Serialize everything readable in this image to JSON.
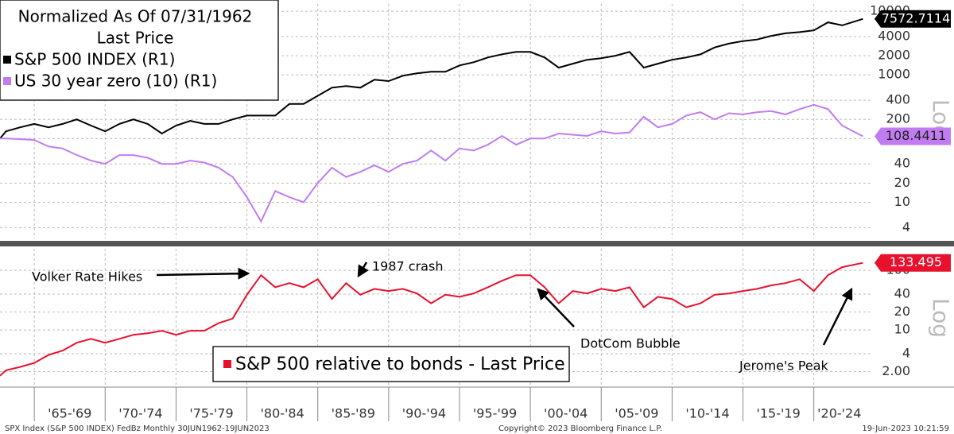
{
  "chart_data": [
    {
      "type": "line",
      "title": "Normalized As Of 07/31/1962",
      "subtitle": "Last Price",
      "y_label": "Log",
      "yscale": "log",
      "xlim": [
        1962.58,
        2024.0
      ],
      "ylim": [
        2.7,
        13000
      ],
      "yticks": [
        4,
        10,
        20,
        40,
        100,
        200,
        400,
        1000,
        2000,
        4000,
        10000
      ],
      "xgrid": [
        1965,
        1970,
        1975,
        1980,
        1985,
        1990,
        1995,
        2000,
        2005,
        2010,
        2015,
        2020
      ],
      "grid": true,
      "legend": "upper left",
      "x": [
        1962.58,
        1963,
        1964,
        1965,
        1966,
        1967,
        1968,
        1969,
        1970,
        1971,
        1972,
        1973,
        1974,
        1975,
        1976,
        1977,
        1978,
        1979,
        1980,
        1981,
        1982,
        1983,
        1984,
        1985,
        1986,
        1987,
        1988,
        1989,
        1990,
        1991,
        1992,
        1993,
        1994,
        1995,
        1996,
        1997,
        1998,
        1999,
        2000,
        2001,
        2002,
        2003,
        2004,
        2005,
        2006,
        2007,
        2008,
        2009,
        2010,
        2011,
        2012,
        2013,
        2014,
        2015,
        2016,
        2017,
        2018,
        2019,
        2020,
        2021,
        2022,
        2023.46
      ],
      "series": [
        {
          "name": "S&P 500 INDEX  (R1)",
          "color": "#000000",
          "values": [
            100,
            130,
            150,
            170,
            150,
            170,
            200,
            160,
            130,
            170,
            200,
            170,
            120,
            160,
            190,
            170,
            170,
            200,
            230,
            230,
            230,
            350,
            350,
            470,
            630,
            670,
            630,
            840,
            800,
            970,
            1060,
            1120,
            1120,
            1410,
            1580,
            1880,
            2110,
            2300,
            2300,
            1880,
            1300,
            1500,
            1730,
            1830,
            2000,
            2300,
            1300,
            1500,
            1730,
            1880,
            2100,
            2700,
            3100,
            3400,
            3600,
            4100,
            4500,
            4700,
            5000,
            6700,
            6000,
            7572.7114
          ]
        },
        {
          "name": "US 30 year zero (10)  (R1)",
          "color": "#c07cf0",
          "values": [
            100,
            100,
            98,
            95,
            75,
            70,
            55,
            45,
            40,
            55,
            55,
            50,
            40,
            40,
            45,
            42,
            35,
            25,
            12,
            5,
            15,
            12,
            10,
            20,
            35,
            25,
            30,
            38,
            30,
            40,
            45,
            65,
            45,
            70,
            65,
            80,
            110,
            80,
            100,
            100,
            120,
            115,
            110,
            130,
            120,
            125,
            220,
            150,
            170,
            230,
            260,
            200,
            250,
            240,
            260,
            270,
            240,
            290,
            340,
            290,
            160,
            108.4411
          ]
        }
      ]
    },
    {
      "type": "line",
      "y_label": "Log",
      "yscale": "log",
      "xlim": [
        1962.58,
        2024.0
      ],
      "ylim": [
        1.1,
        230
      ],
      "yticks": [
        {
          "value": 2,
          "label": "2.00"
        },
        4,
        10,
        20,
        40,
        100
      ],
      "xgrid": [
        1965,
        1970,
        1975,
        1980,
        1985,
        1990,
        1995,
        2000,
        2005,
        2010,
        2015,
        2020
      ],
      "xticks": [
        {
          "value": 1967.5,
          "label": "'65-'69"
        },
        {
          "value": 1972.5,
          "label": "'70-'74"
        },
        {
          "value": 1977.5,
          "label": "'75-'79"
        },
        {
          "value": 1982.5,
          "label": "'80-'84"
        },
        {
          "value": 1987.5,
          "label": "'85-'89"
        },
        {
          "value": 1992.5,
          "label": "'90-'94"
        },
        {
          "value": 1997.5,
          "label": "'95-'99"
        },
        {
          "value": 2002.5,
          "label": "'00-'04"
        },
        {
          "value": 2007.5,
          "label": "'05-'09"
        },
        {
          "value": 2012.5,
          "label": "'10-'14"
        },
        {
          "value": 2017.5,
          "label": "'15-'19"
        },
        {
          "value": 2021.8,
          "label": "'20-'24"
        }
      ],
      "grid": true,
      "legend": "lower center",
      "annotations": [
        "Volker Rate Hikes",
        "1987 crash",
        "DotCom Bubble",
        "Jerome's Peak"
      ],
      "x": [
        1962.58,
        1963,
        1964,
        1965,
        1966,
        1967,
        1968,
        1969,
        1970,
        1971,
        1972,
        1973,
        1974,
        1975,
        1976,
        1977,
        1978,
        1979,
        1980,
        1981,
        1982,
        1983,
        1984,
        1985,
        1986,
        1987,
        1988,
        1989,
        1990,
        1991,
        1992,
        1993,
        1994,
        1995,
        1996,
        1997,
        1998,
        1999,
        2000,
        2001,
        2002,
        2003,
        2004,
        2005,
        2006,
        2007,
        2008,
        2009,
        2010,
        2011,
        2012,
        2013,
        2014,
        2015,
        2016,
        2017,
        2018,
        2019,
        2020,
        2021,
        2022,
        2023.46
      ],
      "series": [
        {
          "name": "S&P 500 relative to bonds - Last Price",
          "color": "#e8112d",
          "values": [
            1.7,
            2.1,
            2.4,
            2.8,
            3.8,
            4.5,
            6.1,
            7.1,
            6.1,
            7.1,
            8.3,
            8.8,
            9.7,
            8.3,
            9.7,
            9.7,
            13,
            15.5,
            39,
            83,
            52,
            61,
            52,
            71,
            33,
            61,
            39,
            49,
            45,
            49,
            41,
            28,
            39,
            36,
            41,
            52,
            67,
            83,
            83,
            52,
            28,
            45,
            41,
            49,
            45,
            52,
            24,
            36,
            33,
            24,
            28,
            39,
            41,
            45,
            49,
            56,
            61,
            71,
            45,
            83,
            113,
            133.495
          ]
        }
      ]
    }
  ],
  "footer": {
    "left": "SPX Index (S&P 500 INDEX) FedBz  Monthly 30JUN1962-19JUN2023",
    "center": "Copyright© 2023 Bloomberg Finance L.P.",
    "right": "19-Jun-2023 10:21:59"
  }
}
